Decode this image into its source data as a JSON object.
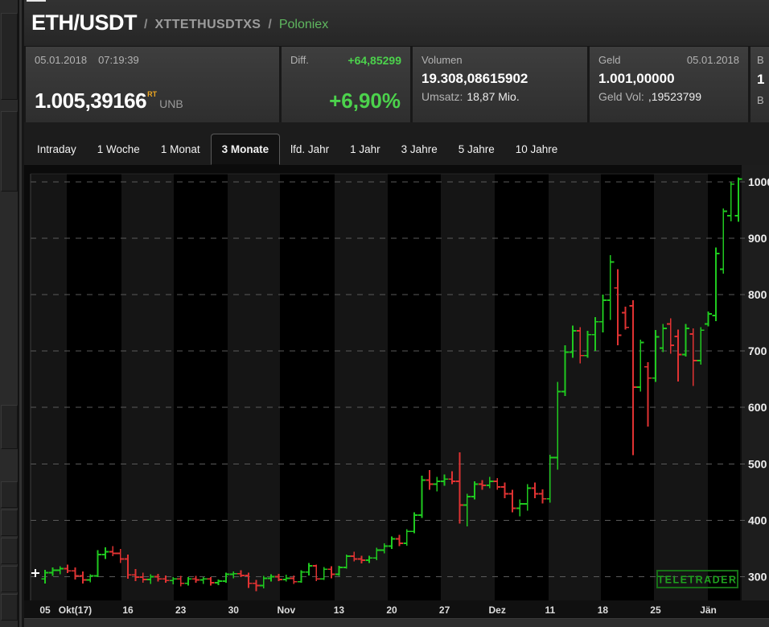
{
  "header": {
    "symbol": "ETH/USDT",
    "separator": "/",
    "code": "XTTETHUSDTXS",
    "exchange": "Poloniex"
  },
  "quote": {
    "date": "05.01.2018",
    "time": "07:19:39",
    "price": "1.005,39166",
    "rt_flag": "RT",
    "quality": "UNB"
  },
  "diff": {
    "label": "Diff.",
    "absolute": "+64,85299",
    "percent": "+6,90%"
  },
  "volume": {
    "label": "Volumen",
    "value": "19.308,08615902",
    "turnover_label": "Umsatz:",
    "turnover_value": "18,87 Mio."
  },
  "bid": {
    "label": "Geld",
    "date": "05.01.2018",
    "value": "1.001,00000",
    "vol_label": "Geld Vol:",
    "vol_value": ",19523799"
  },
  "ask_partial": {
    "label_clipped": "B",
    "value_clipped": "1",
    "vol_label_clipped": "B"
  },
  "tabs": {
    "items": [
      "Intraday",
      "1 Woche",
      "1 Monat",
      "3 Monate",
      "lfd. Jahr",
      "1 Jahr",
      "3 Jahre",
      "5 Jahre",
      "10 Jahre"
    ],
    "selected_index": 3
  },
  "chart_data": {
    "type": "ohlc-bar",
    "instrument": "ETH/USDT",
    "interval": "daily",
    "period_shown": "3 Monate (05 Okt 2017 - 05 Jän 2018)",
    "watermark": "TELETRADER",
    "grid": true,
    "weekly_shading": true,
    "y_axis": {
      "side": "right",
      "ticks": [
        300,
        400,
        500,
        600,
        700,
        800,
        900,
        1000
      ],
      "min": 257,
      "max": 1014
    },
    "x_labels": [
      {
        "text": "05",
        "day": 0
      },
      {
        "text": "Okt(17)",
        "day": 4
      },
      {
        "text": "16",
        "day": 11
      },
      {
        "text": "23",
        "day": 18
      },
      {
        "text": "30",
        "day": 25
      },
      {
        "text": "Nov",
        "day": 32
      },
      {
        "text": "13",
        "day": 39
      },
      {
        "text": "20",
        "day": 46
      },
      {
        "text": "27",
        "day": 53
      },
      {
        "text": "Dez",
        "day": 60
      },
      {
        "text": "11",
        "day": 67
      },
      {
        "text": "18",
        "day": 74
      },
      {
        "text": "25",
        "day": 81
      },
      {
        "text": "Jän",
        "day": 88
      }
    ],
    "colors": {
      "up": "#1fc91f",
      "down": "#e03232",
      "grid": "#5a5a5a",
      "band": "#151515",
      "axis_text": "#eeeeee",
      "watermark": "#1fa21f",
      "first_point_marker": "#ffffff"
    },
    "ohlc": [
      [
        296,
        312,
        288,
        307
      ],
      [
        307,
        316,
        301,
        311
      ],
      [
        311,
        318,
        304,
        314
      ],
      [
        314,
        321,
        306,
        310
      ],
      [
        310,
        316,
        295,
        301
      ],
      [
        301,
        309,
        288,
        294
      ],
      [
        294,
        304,
        290,
        301
      ],
      [
        301,
        347,
        299,
        339
      ],
      [
        339,
        352,
        331,
        344
      ],
      [
        344,
        354,
        336,
        341
      ],
      [
        341,
        349,
        324,
        331
      ],
      [
        331,
        339,
        296,
        303
      ],
      [
        303,
        313,
        292,
        299
      ],
      [
        299,
        307,
        289,
        295
      ],
      [
        295,
        304,
        287,
        300
      ],
      [
        300,
        305,
        291,
        296
      ],
      [
        296,
        302,
        289,
        293
      ],
      [
        293,
        299,
        286,
        296
      ],
      [
        296,
        301,
        283,
        288
      ],
      [
        288,
        299,
        284,
        296
      ],
      [
        296,
        301,
        289,
        294
      ],
      [
        294,
        299,
        287,
        296
      ],
      [
        296,
        299,
        284,
        289
      ],
      [
        289,
        295,
        285,
        292
      ],
      [
        292,
        307,
        289,
        304
      ],
      [
        304,
        309,
        297,
        305
      ],
      [
        305,
        311,
        299,
        302
      ],
      [
        302,
        307,
        280,
        288
      ],
      [
        288,
        294,
        274,
        284
      ],
      [
        284,
        301,
        279,
        297
      ],
      [
        297,
        304,
        291,
        300
      ],
      [
        300,
        305,
        292,
        295
      ],
      [
        295,
        303,
        291,
        297
      ],
      [
        297,
        302,
        287,
        291
      ],
      [
        291,
        311,
        289,
        308
      ],
      [
        308,
        324,
        302,
        319
      ],
      [
        319,
        321,
        292,
        296
      ],
      [
        296,
        317,
        294,
        313
      ],
      [
        313,
        318,
        297,
        304
      ],
      [
        304,
        319,
        301,
        316
      ],
      [
        316,
        339,
        314,
        336
      ],
      [
        336,
        344,
        327,
        331
      ],
      [
        331,
        337,
        323,
        329
      ],
      [
        329,
        337,
        324,
        333
      ],
      [
        333,
        351,
        329,
        347
      ],
      [
        347,
        359,
        341,
        354
      ],
      [
        354,
        371,
        349,
        367
      ],
      [
        367,
        374,
        354,
        359
      ],
      [
        359,
        384,
        355,
        380
      ],
      [
        380,
        414,
        377,
        409
      ],
      [
        409,
        479,
        404,
        471
      ],
      [
        471,
        489,
        454,
        464
      ],
      [
        464,
        477,
        451,
        469
      ],
      [
        469,
        481,
        461,
        473
      ],
      [
        473,
        487,
        464,
        469
      ],
      [
        469,
        520,
        394,
        427
      ],
      [
        427,
        447,
        389,
        442
      ],
      [
        442,
        469,
        437,
        464
      ],
      [
        464,
        471,
        454,
        462
      ],
      [
        462,
        477,
        457,
        469
      ],
      [
        469,
        475,
        454,
        459
      ],
      [
        459,
        467,
        439,
        447
      ],
      [
        447,
        454,
        414,
        421
      ],
      [
        421,
        437,
        407,
        429
      ],
      [
        429,
        464,
        417,
        457
      ],
      [
        457,
        467,
        439,
        447
      ],
      [
        447,
        455,
        430,
        438
      ],
      [
        438,
        516,
        431,
        511
      ],
      [
        511,
        645,
        490,
        628
      ],
      [
        628,
        710,
        620,
        698
      ],
      [
        698,
        745,
        688,
        736
      ],
      [
        736,
        742,
        678,
        692
      ],
      [
        692,
        736,
        688,
        729
      ],
      [
        729,
        760,
        700,
        752
      ],
      [
        752,
        800,
        733,
        790
      ],
      [
        790,
        870,
        755,
        858
      ],
      [
        812,
        845,
        710,
        728
      ],
      [
        768,
        779,
        738,
        742
      ],
      [
        780,
        790,
        515,
        636
      ],
      [
        636,
        720,
        628,
        715
      ],
      [
        672,
        680,
        566,
        652
      ],
      [
        652,
        737,
        645,
        725
      ],
      [
        705,
        748,
        698,
        740
      ],
      [
        748,
        758,
        695,
        710
      ],
      [
        726,
        738,
        646,
        694
      ],
      [
        694,
        748,
        690,
        740
      ],
      [
        730,
        740,
        638,
        683
      ],
      [
        683,
        742,
        676,
        737
      ],
      [
        748,
        770,
        744,
        766
      ],
      [
        763,
        884,
        753,
        873
      ],
      [
        845,
        953,
        837,
        948
      ],
      [
        940,
        1001,
        930,
        996
      ],
      [
        940,
        1008,
        929,
        1005
      ]
    ]
  }
}
